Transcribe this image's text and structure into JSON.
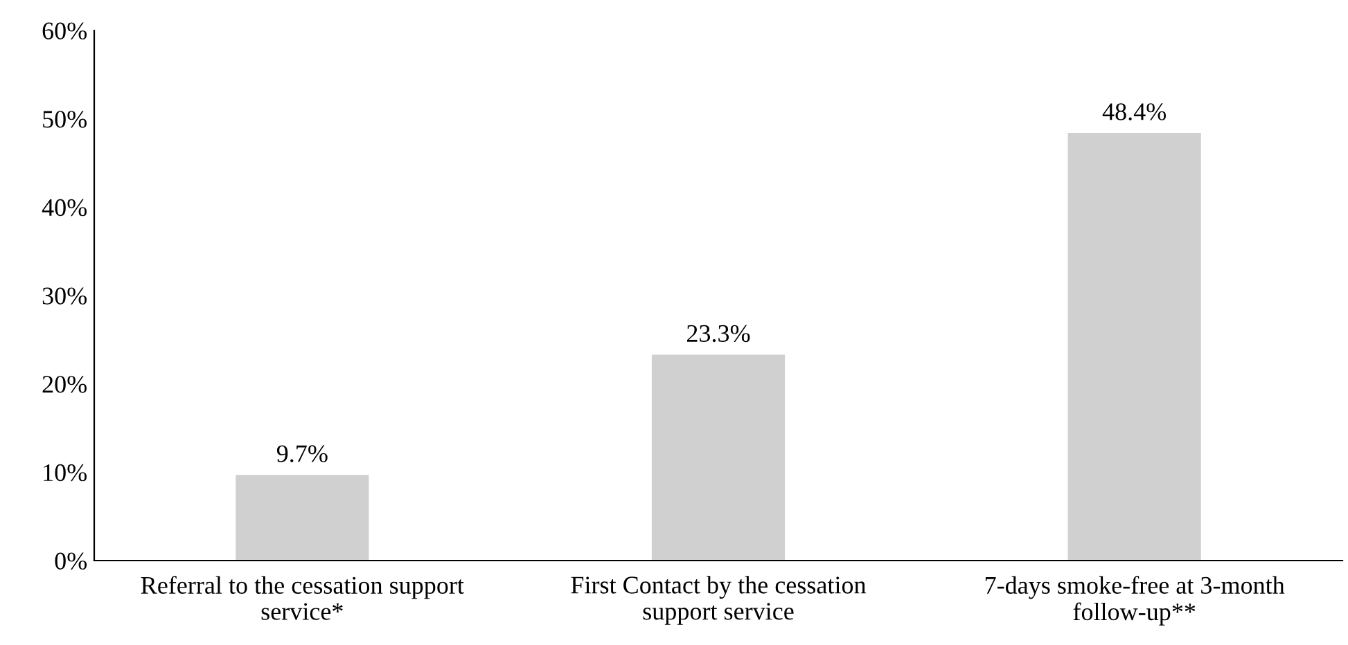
{
  "chart_data": {
    "type": "bar",
    "categories": [
      "Referral to the cessation support service*",
      "First Contact by the cessation support service",
      "7-days smoke-free at 3-month follow-up**"
    ],
    "values": [
      9.7,
      23.3,
      48.4
    ],
    "value_labels": [
      "9.7%",
      "23.3%",
      "48.4%"
    ],
    "color": "#d0d0d0",
    "ylim": [
      0,
      60
    ],
    "yticks": [
      {
        "value": 0,
        "label": "0%"
      },
      {
        "value": 10,
        "label": "10%"
      },
      {
        "value": 20,
        "label": "20%"
      },
      {
        "value": 30,
        "label": "30%"
      },
      {
        "value": 40,
        "label": "40%"
      },
      {
        "value": 50,
        "label": "50%"
      },
      {
        "value": 60,
        "label": "60%"
      }
    ],
    "grid": false,
    "legend": false
  }
}
